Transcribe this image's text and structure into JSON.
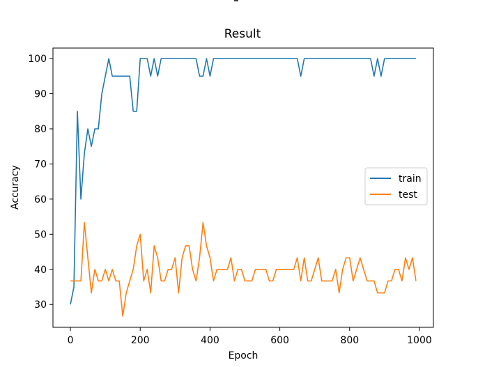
{
  "chart_data": {
    "type": "line",
    "title": "Result",
    "xlabel": "Epoch",
    "ylabel": "Accuracy",
    "xlim": [
      -50,
      1040
    ],
    "ylim": [
      23.5,
      103
    ],
    "xticks": [
      0,
      200,
      400,
      600,
      800,
      1000
    ],
    "yticks": [
      30,
      40,
      50,
      60,
      70,
      80,
      90,
      100
    ],
    "grid": false,
    "legend_position": "center-right",
    "series": [
      {
        "name": "train",
        "color": "#1f77b4",
        "points": [
          [
            0,
            30
          ],
          [
            10,
            35
          ],
          [
            20,
            85
          ],
          [
            30,
            60
          ],
          [
            40,
            73
          ],
          [
            50,
            80
          ],
          [
            60,
            75
          ],
          [
            70,
            80
          ],
          [
            80,
            80
          ],
          [
            90,
            90
          ],
          [
            100,
            95
          ],
          [
            110,
            100
          ],
          [
            120,
            95
          ],
          [
            130,
            95
          ],
          [
            140,
            95
          ],
          [
            150,
            95
          ],
          [
            160,
            95
          ],
          [
            170,
            95
          ],
          [
            180,
            85
          ],
          [
            190,
            85
          ],
          [
            200,
            100
          ],
          [
            210,
            100
          ],
          [
            220,
            100
          ],
          [
            230,
            95
          ],
          [
            240,
            100
          ],
          [
            250,
            95
          ],
          [
            260,
            100
          ],
          [
            270,
            100
          ],
          [
            280,
            100
          ],
          [
            290,
            100
          ],
          [
            300,
            100
          ],
          [
            310,
            100
          ],
          [
            320,
            100
          ],
          [
            330,
            100
          ],
          [
            340,
            100
          ],
          [
            350,
            100
          ],
          [
            360,
            100
          ],
          [
            370,
            95
          ],
          [
            380,
            95
          ],
          [
            390,
            100
          ],
          [
            400,
            95
          ],
          [
            410,
            100
          ],
          [
            420,
            100
          ],
          [
            440,
            100
          ],
          [
            460,
            100
          ],
          [
            480,
            100
          ],
          [
            500,
            100
          ],
          [
            520,
            100
          ],
          [
            540,
            100
          ],
          [
            560,
            100
          ],
          [
            580,
            100
          ],
          [
            600,
            100
          ],
          [
            620,
            100
          ],
          [
            640,
            100
          ],
          [
            650,
            100
          ],
          [
            660,
            95
          ],
          [
            670,
            100
          ],
          [
            680,
            100
          ],
          [
            700,
            100
          ],
          [
            720,
            100
          ],
          [
            740,
            100
          ],
          [
            760,
            100
          ],
          [
            780,
            100
          ],
          [
            800,
            100
          ],
          [
            820,
            100
          ],
          [
            840,
            100
          ],
          [
            850,
            100
          ],
          [
            860,
            100
          ],
          [
            870,
            95
          ],
          [
            880,
            100
          ],
          [
            890,
            95
          ],
          [
            900,
            100
          ],
          [
            920,
            100
          ],
          [
            940,
            100
          ],
          [
            960,
            100
          ],
          [
            980,
            100
          ],
          [
            990,
            100
          ]
        ]
      },
      {
        "name": "test",
        "color": "#ff7f0e",
        "points": [
          [
            0,
            36.7
          ],
          [
            10,
            36.7
          ],
          [
            20,
            36.7
          ],
          [
            30,
            36.7
          ],
          [
            40,
            53.3
          ],
          [
            50,
            43.3
          ],
          [
            60,
            33.3
          ],
          [
            70,
            40
          ],
          [
            80,
            36.7
          ],
          [
            90,
            36.7
          ],
          [
            100,
            40
          ],
          [
            110,
            36.7
          ],
          [
            120,
            40
          ],
          [
            130,
            36.7
          ],
          [
            140,
            36.7
          ],
          [
            150,
            26.7
          ],
          [
            160,
            33.3
          ],
          [
            170,
            36.7
          ],
          [
            180,
            40
          ],
          [
            190,
            46.7
          ],
          [
            200,
            50
          ],
          [
            210,
            36.7
          ],
          [
            220,
            40
          ],
          [
            230,
            33.3
          ],
          [
            240,
            46.7
          ],
          [
            250,
            43.3
          ],
          [
            260,
            36.7
          ],
          [
            270,
            36.7
          ],
          [
            280,
            40
          ],
          [
            290,
            40
          ],
          [
            300,
            43.3
          ],
          [
            310,
            33.3
          ],
          [
            320,
            43.3
          ],
          [
            330,
            46.7
          ],
          [
            340,
            46.7
          ],
          [
            350,
            40
          ],
          [
            360,
            36.7
          ],
          [
            370,
            43.3
          ],
          [
            380,
            53.3
          ],
          [
            390,
            46.7
          ],
          [
            400,
            43.3
          ],
          [
            410,
            36.7
          ],
          [
            420,
            40
          ],
          [
            430,
            40
          ],
          [
            440,
            40
          ],
          [
            450,
            40
          ],
          [
            460,
            43.3
          ],
          [
            470,
            36.7
          ],
          [
            480,
            40
          ],
          [
            490,
            40
          ],
          [
            500,
            36.7
          ],
          [
            510,
            36.7
          ],
          [
            520,
            36.7
          ],
          [
            530,
            40
          ],
          [
            540,
            40
          ],
          [
            550,
            40
          ],
          [
            560,
            40
          ],
          [
            570,
            36.7
          ],
          [
            580,
            36.7
          ],
          [
            590,
            40
          ],
          [
            600,
            40
          ],
          [
            610,
            40
          ],
          [
            620,
            40
          ],
          [
            630,
            40
          ],
          [
            640,
            40
          ],
          [
            650,
            43.3
          ],
          [
            660,
            36.7
          ],
          [
            670,
            43.3
          ],
          [
            680,
            36.7
          ],
          [
            690,
            36.7
          ],
          [
            700,
            40
          ],
          [
            710,
            43.3
          ],
          [
            720,
            36.7
          ],
          [
            730,
            36.7
          ],
          [
            740,
            36.7
          ],
          [
            750,
            36.7
          ],
          [
            760,
            40
          ],
          [
            770,
            33.3
          ],
          [
            780,
            40
          ],
          [
            790,
            43.3
          ],
          [
            800,
            43.3
          ],
          [
            810,
            36.7
          ],
          [
            820,
            40
          ],
          [
            830,
            43.3
          ],
          [
            840,
            40
          ],
          [
            850,
            36.7
          ],
          [
            860,
            36.7
          ],
          [
            870,
            36.7
          ],
          [
            880,
            33.3
          ],
          [
            890,
            33.3
          ],
          [
            900,
            33.3
          ],
          [
            910,
            36.7
          ],
          [
            920,
            36.7
          ],
          [
            930,
            40
          ],
          [
            940,
            40
          ],
          [
            950,
            36.7
          ],
          [
            960,
            43.3
          ],
          [
            970,
            40
          ],
          [
            980,
            43.3
          ],
          [
            990,
            36.7
          ]
        ]
      }
    ]
  }
}
